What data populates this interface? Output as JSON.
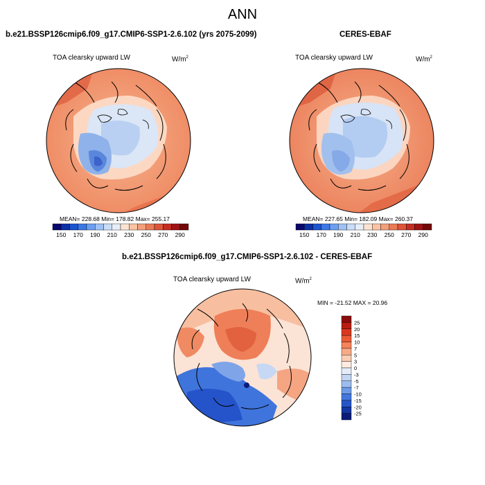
{
  "page_title": "ANN",
  "panels": [
    {
      "title": "b.e21.BSSP126cmip6.f09_g17.CMIP6-SSP1-2.6.102 (yrs 2075-2099)",
      "subtitle": "TOA clearsky upward LW",
      "units": "W/m",
      "units_sup": "2",
      "stats": "MEAN= 228.68  Min= 178.82  Max= 255.17"
    },
    {
      "title": "CERES-EBAF",
      "subtitle": "TOA clearsky upward LW",
      "units": "W/m",
      "units_sup": "2",
      "stats": "MEAN= 227.65  Min= 182.09  Max= 260.37"
    },
    {
      "title": "b.e21.BSSP126cmip6.f09_g17.CMIP6-SSP1-2.6.102 - CERES-EBAF",
      "subtitle": "TOA clearsky upward LW",
      "units": "W/m",
      "units_sup": "2",
      "stats": "MIN = -21.52 MAX =  20.96"
    }
  ],
  "abs_colorbar": {
    "labels": [
      "150",
      "170",
      "190",
      "210",
      "230",
      "250",
      "270",
      "290"
    ],
    "colors": [
      "#08086b",
      "#0b2fa6",
      "#1d54cf",
      "#3b78e3",
      "#6b9ef0",
      "#9fc1f5",
      "#c9ddf7",
      "#e8eef8",
      "#fbe3d3",
      "#f9c3a4",
      "#f39f7a",
      "#ea7a57",
      "#dc5538",
      "#c42e22",
      "#9e1414",
      "#730909"
    ]
  },
  "diff_colorbar": {
    "labels": [
      "25",
      "20",
      "15",
      "10",
      "7",
      "5",
      "3",
      "0",
      "-3",
      "-5",
      "-7",
      "-10",
      "-15",
      "-20",
      "-25"
    ],
    "colors": [
      "#8b0c0c",
      "#b81d12",
      "#d9381f",
      "#ec5a36",
      "#f5835c",
      "#f8a986",
      "#fbcdb4",
      "#fdebe0",
      "#e3ecf8",
      "#c2d6f3",
      "#9cbcee",
      "#6e9be7",
      "#4277de",
      "#2555c9",
      "#1535a3",
      "#0b1c78"
    ]
  }
}
